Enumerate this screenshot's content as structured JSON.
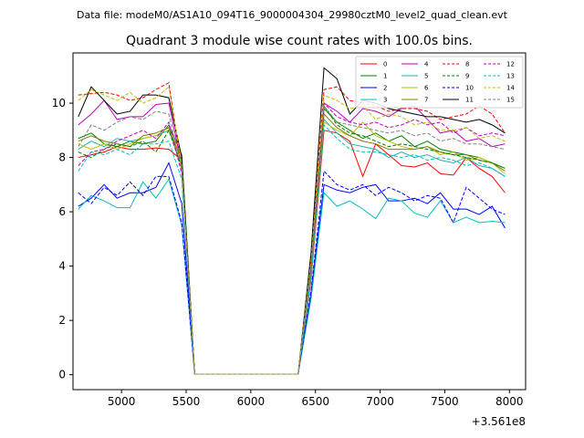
{
  "header": {
    "suptitle": "Data file: modeM0/AS1A10_094T16_9000004304_29980cztM0_level2_quad_clean.evt"
  },
  "chart_data": {
    "type": "line",
    "title": "Quadrant 3 module wise count rates with 100.0s bins.",
    "xlabel": "",
    "ylabel": "",
    "x_offset_label": "+3.561e8",
    "xlim": [
      4625,
      8125
    ],
    "ylim": [
      -0.55,
      11.85
    ],
    "xticks": [
      5000,
      5500,
      6000,
      6500,
      7000,
      7500,
      8000
    ],
    "xtick_labels": [
      "5000",
      "5500",
      "6000",
      "6500",
      "7000",
      "7500",
      "8000"
    ],
    "yticks": [
      0,
      2,
      4,
      6,
      8,
      10
    ],
    "ytick_labels": [
      "0",
      "2",
      "4",
      "6",
      "8",
      "10"
    ],
    "legend_position": "upper-right",
    "x": [
      4666,
      4766,
      4866,
      4966,
      5066,
      5166,
      5266,
      5366,
      5466,
      5566,
      5666,
      5766,
      5866,
      5966,
      6066,
      6166,
      6266,
      6366,
      6466,
      6566,
      6666,
      6766,
      6866,
      6966,
      7066,
      7166,
      7266,
      7366,
      7466,
      7566,
      7666,
      7766,
      7866,
      7966
    ],
    "series": [
      {
        "name": "0",
        "color": "#ff0000",
        "dashed": false,
        "values": [
          8.0,
          8.1,
          8.2,
          8.4,
          8.3,
          8.3,
          8.35,
          8.3,
          7.9,
          0.02,
          0.02,
          0.02,
          0.02,
          0.02,
          0.02,
          0.02,
          0.02,
          0.02,
          3.5,
          9.0,
          8.9,
          8.6,
          7.3,
          8.5,
          8.1,
          7.7,
          7.65,
          7.8,
          7.4,
          7.35,
          8.0,
          7.6,
          7.3,
          6.7
        ]
      },
      {
        "name": "1",
        "color": "#008000",
        "dashed": false,
        "values": [
          8.7,
          8.9,
          8.5,
          8.4,
          8.6,
          8.5,
          8.6,
          9.2,
          8.1,
          0.02,
          0.02,
          0.02,
          0.02,
          0.02,
          0.02,
          0.02,
          0.02,
          0.02,
          3.8,
          9.8,
          9.3,
          9.0,
          8.7,
          8.9,
          8.6,
          8.8,
          8.4,
          8.6,
          8.3,
          8.2,
          8.1,
          8.0,
          7.8,
          7.6
        ]
      },
      {
        "name": "2",
        "color": "#0000ff",
        "dashed": false,
        "values": [
          6.2,
          6.5,
          7.0,
          6.5,
          6.7,
          6.7,
          6.9,
          7.8,
          6.3,
          0.02,
          0.02,
          0.02,
          0.02,
          0.02,
          0.02,
          0.02,
          0.02,
          0.02,
          3.0,
          7.0,
          6.8,
          6.7,
          6.9,
          7.0,
          6.4,
          6.4,
          6.5,
          6.3,
          6.7,
          6.1,
          6.1,
          5.9,
          6.2,
          5.4
        ]
      },
      {
        "name": "3",
        "color": "#00bfbf",
        "dashed": false,
        "values": [
          6.1,
          6.6,
          6.4,
          6.15,
          6.15,
          7.1,
          6.5,
          7.2,
          5.5,
          0.02,
          0.02,
          0.02,
          0.02,
          0.02,
          0.02,
          0.02,
          0.02,
          0.02,
          2.8,
          6.7,
          6.2,
          6.4,
          6.1,
          5.75,
          6.5,
          6.4,
          5.95,
          5.8,
          6.4,
          5.6,
          5.8,
          5.6,
          5.65,
          5.6
        ]
      },
      {
        "name": "4",
        "color": "#bf00bf",
        "dashed": false,
        "values": [
          9.2,
          9.6,
          10.1,
          9.4,
          9.5,
          9.5,
          9.95,
          10.0,
          7.7,
          0.02,
          0.02,
          0.02,
          0.02,
          0.02,
          0.02,
          0.02,
          0.02,
          0.02,
          4.0,
          10.0,
          9.7,
          9.3,
          9.8,
          9.7,
          9.5,
          9.8,
          9.9,
          9.4,
          8.9,
          9.0,
          8.6,
          8.7,
          8.4,
          8.5
        ]
      },
      {
        "name": "5",
        "color": "#20b2aa",
        "dashed": false,
        "values": [
          8.3,
          8.6,
          8.4,
          8.7,
          8.6,
          8.7,
          8.8,
          9.0,
          7.7,
          0.02,
          0.02,
          0.02,
          0.02,
          0.02,
          0.02,
          0.02,
          0.02,
          0.02,
          3.6,
          9.4,
          8.9,
          8.5,
          8.4,
          8.3,
          8.0,
          8.2,
          8.0,
          8.1,
          7.9,
          7.8,
          8.0,
          7.7,
          7.6,
          7.3
        ]
      },
      {
        "name": "6",
        "color": "#bfbf00",
        "dashed": false,
        "values": [
          8.5,
          8.3,
          8.5,
          8.3,
          8.5,
          8.7,
          8.8,
          9.1,
          7.8,
          0.02,
          0.02,
          0.02,
          0.02,
          0.02,
          0.02,
          0.02,
          0.02,
          0.02,
          3.7,
          9.3,
          9.0,
          8.8,
          9.3,
          8.8,
          8.6,
          8.4,
          8.3,
          8.4,
          8.1,
          8.2,
          7.9,
          8.0,
          7.8,
          7.4
        ]
      },
      {
        "name": "7",
        "color": "#808000",
        "dashed": false,
        "values": [
          8.6,
          8.8,
          8.6,
          8.5,
          8.4,
          8.8,
          8.9,
          9.1,
          7.9,
          0.02,
          0.02,
          0.02,
          0.02,
          0.02,
          0.02,
          0.02,
          0.02,
          0.02,
          3.8,
          9.6,
          9.1,
          8.8,
          8.6,
          8.5,
          8.3,
          8.3,
          8.3,
          8.4,
          8.2,
          8.1,
          8.1,
          7.9,
          7.8,
          7.5
        ]
      },
      {
        "name": "8",
        "color": "#ff0000",
        "dashed": true,
        "values": [
          10.3,
          10.35,
          10.4,
          10.3,
          10.1,
          10.2,
          10.5,
          10.75,
          7.5,
          0.02,
          0.02,
          0.02,
          0.02,
          0.02,
          0.02,
          0.02,
          0.02,
          0.02,
          4.3,
          10.5,
          10.6,
          10.1,
          10.0,
          9.9,
          9.7,
          9.8,
          9.8,
          9.7,
          9.4,
          9.5,
          9.6,
          9.9,
          9.6,
          8.9
        ]
      },
      {
        "name": "9",
        "color": "#008000",
        "dashed": true,
        "values": [
          8.2,
          8.0,
          8.3,
          8.5,
          8.4,
          8.6,
          8.2,
          9.0,
          7.6,
          0.02,
          0.02,
          0.02,
          0.02,
          0.02,
          0.02,
          0.02,
          0.02,
          0.02,
          3.9,
          9.9,
          9.2,
          8.9,
          8.8,
          8.6,
          8.4,
          8.5,
          8.4,
          8.3,
          8.2,
          8.1,
          8.0,
          7.9,
          7.8,
          7.6
        ]
      },
      {
        "name": "10",
        "color": "#0000ff",
        "dashed": true,
        "values": [
          6.7,
          6.3,
          6.9,
          6.6,
          7.1,
          6.6,
          7.3,
          7.3,
          5.6,
          0.02,
          0.02,
          0.02,
          0.02,
          0.02,
          0.02,
          0.02,
          0.02,
          0.02,
          3.1,
          7.5,
          7.0,
          6.8,
          7.0,
          6.6,
          6.9,
          6.7,
          6.4,
          6.6,
          6.5,
          5.6,
          6.9,
          6.5,
          6.1,
          5.9
        ]
      },
      {
        "name": "11",
        "color": "#000000",
        "dashed": false,
        "values": [
          9.5,
          10.6,
          10.1,
          9.6,
          9.7,
          10.3,
          10.3,
          10.2,
          8.0,
          0.02,
          0.02,
          0.02,
          0.02,
          0.02,
          0.02,
          0.02,
          0.02,
          0.02,
          4.5,
          11.3,
          10.9,
          9.6,
          10.1,
          10.0,
          9.8,
          9.7,
          9.6,
          9.5,
          9.5,
          9.4,
          9.3,
          9.4,
          9.2,
          8.9
        ]
      },
      {
        "name": "12",
        "color": "#bf00bf",
        "dashed": true,
        "values": [
          7.7,
          8.2,
          8.3,
          8.6,
          8.8,
          9.0,
          8.7,
          9.3,
          7.4,
          0.02,
          0.02,
          0.02,
          0.02,
          0.02,
          0.02,
          0.02,
          0.02,
          0.02,
          3.9,
          10.0,
          9.5,
          9.3,
          9.2,
          9.3,
          9.1,
          9.2,
          9.4,
          9.2,
          9.3,
          8.9,
          9.1,
          8.8,
          8.9,
          8.8
        ]
      },
      {
        "name": "13",
        "color": "#00bfbf",
        "dashed": true,
        "values": [
          7.5,
          8.2,
          8.1,
          8.3,
          8.1,
          8.5,
          8.5,
          8.6,
          7.2,
          0.02,
          0.02,
          0.02,
          0.02,
          0.02,
          0.02,
          0.02,
          0.02,
          0.02,
          3.6,
          9.2,
          8.7,
          8.3,
          8.2,
          8.2,
          8.1,
          8.0,
          8.1,
          7.9,
          8.0,
          7.9,
          7.7,
          7.8,
          7.6,
          7.3
        ]
      },
      {
        "name": "14",
        "color": "#bfbf00",
        "dashed": true,
        "values": [
          10.1,
          10.5,
          10.3,
          10.1,
          10.4,
          10.0,
          10.2,
          10.6,
          7.7,
          0.02,
          0.02,
          0.02,
          0.02,
          0.02,
          0.02,
          0.02,
          0.02,
          0.02,
          4.2,
          10.3,
          10.1,
          9.8,
          9.9,
          9.4,
          9.6,
          9.5,
          9.2,
          9.3,
          9.0,
          9.0,
          9.1,
          8.7,
          8.8,
          8.6
        ]
      },
      {
        "name": "15",
        "color": "#808080",
        "dashed": true,
        "values": [
          8.4,
          9.2,
          9.0,
          9.3,
          9.5,
          9.4,
          9.7,
          9.6,
          7.6,
          0.02,
          0.02,
          0.02,
          0.02,
          0.02,
          0.02,
          0.02,
          0.02,
          0.02,
          4.0,
          9.9,
          9.3,
          9.2,
          9.1,
          9.0,
          8.9,
          9.0,
          8.8,
          8.9,
          8.6,
          8.7,
          8.5,
          8.5,
          8.4,
          8.3
        ]
      }
    ]
  }
}
